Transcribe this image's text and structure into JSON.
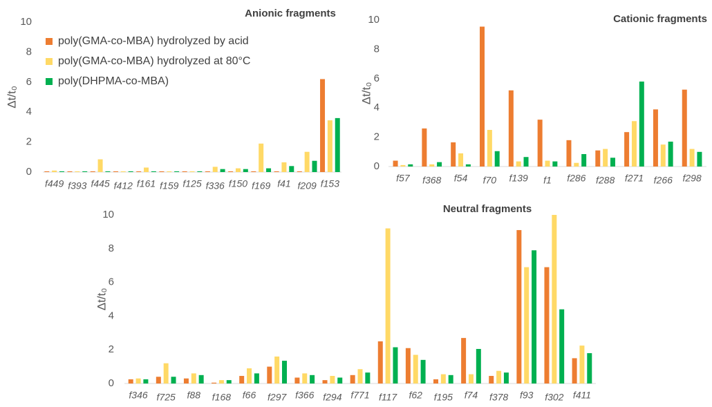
{
  "chart_data": [
    {
      "type": "bar",
      "title": "Anionic fragments",
      "y_label": "Δt/t₀",
      "categories": [
        "f449",
        "f393",
        "f445",
        "f412",
        "f161",
        "f159",
        "f125",
        "f336",
        "f150",
        "f169",
        "f41",
        "f209",
        "f153"
      ],
      "series": [
        {
          "name": "poly(GMA-co-MBA) hydrolyzed by acid",
          "color": "#ED7D31",
          "values": [
            0.05,
            0.05,
            0.05,
            0.05,
            0.05,
            0.05,
            0.05,
            0.05,
            0.05,
            0.05,
            0.05,
            0.05,
            6.2
          ]
        },
        {
          "name": "poly(GMA-co-MBA) hydrolyzed at 80°C",
          "color": "#FFD966",
          "values": [
            0.1,
            0.05,
            0.85,
            0.05,
            0.3,
            0.05,
            0.05,
            0.35,
            0.25,
            1.9,
            0.65,
            1.35,
            3.45
          ]
        },
        {
          "name": "poly(DHPMA-co-MBA)",
          "color": "#00B050",
          "values": [
            0.05,
            0.05,
            0.05,
            0.05,
            0.05,
            0.05,
            0.05,
            0.2,
            0.2,
            0.25,
            0.4,
            0.75,
            3.6
          ]
        }
      ],
      "ylim": [
        0,
        10
      ],
      "yticks": [
        0,
        2,
        4,
        6,
        8,
        10
      ],
      "legend": "upper left"
    },
    {
      "type": "bar",
      "title": "Cationic fragments",
      "y_label": "Δt/t₀",
      "categories": [
        "f57",
        "f368",
        "f54",
        "f70",
        "f139",
        "f1",
        "f286",
        "f288",
        "f271",
        "f266",
        "f298"
      ],
      "series": [
        {
          "color": "#ED7D31",
          "values": [
            0.4,
            2.6,
            1.65,
            9.55,
            5.2,
            3.2,
            1.8,
            1.1,
            2.35,
            3.9,
            5.25
          ]
        },
        {
          "color": "#FFD966",
          "values": [
            0.1,
            0.15,
            0.9,
            2.5,
            0.35,
            0.4,
            0.25,
            1.2,
            3.1,
            1.5,
            1.2
          ]
        },
        {
          "color": "#00B050",
          "values": [
            0.15,
            0.3,
            0.15,
            1.05,
            0.65,
            0.35,
            0.85,
            0.6,
            5.8,
            1.7,
            1.0
          ]
        }
      ],
      "ylim": [
        0,
        10
      ],
      "yticks": [
        0,
        2,
        4,
        6,
        8,
        10
      ]
    },
    {
      "type": "bar",
      "title": "Neutral fragments",
      "y_label": "Δt/t₀",
      "categories": [
        "f346",
        "f725",
        "f88",
        "f168",
        "f66",
        "f297",
        "f366",
        "f294",
        "f771",
        "f117",
        "f62",
        "f195",
        "f74",
        "f378",
        "f93",
        "f302",
        "f411"
      ],
      "series": [
        {
          "color": "#ED7D31",
          "values": [
            0.25,
            0.4,
            0.3,
            0.05,
            0.45,
            1.0,
            0.35,
            0.2,
            0.5,
            2.5,
            2.1,
            0.25,
            2.7,
            0.45,
            9.1,
            6.9,
            1.5
          ]
        },
        {
          "color": "#FFD966",
          "values": [
            0.3,
            1.2,
            0.6,
            0.2,
            0.9,
            1.6,
            0.6,
            0.45,
            0.85,
            9.2,
            1.7,
            0.55,
            0.55,
            0.75,
            6.9,
            10.0,
            2.25
          ]
        },
        {
          "color": "#00B050",
          "values": [
            0.25,
            0.4,
            0.5,
            0.2,
            0.6,
            1.35,
            0.5,
            0.35,
            0.65,
            2.15,
            1.4,
            0.5,
            2.05,
            0.65,
            7.9,
            4.4,
            1.8
          ]
        }
      ],
      "ylim": [
        0,
        10
      ],
      "yticks": [
        0,
        2,
        4,
        6,
        8,
        10
      ]
    }
  ]
}
